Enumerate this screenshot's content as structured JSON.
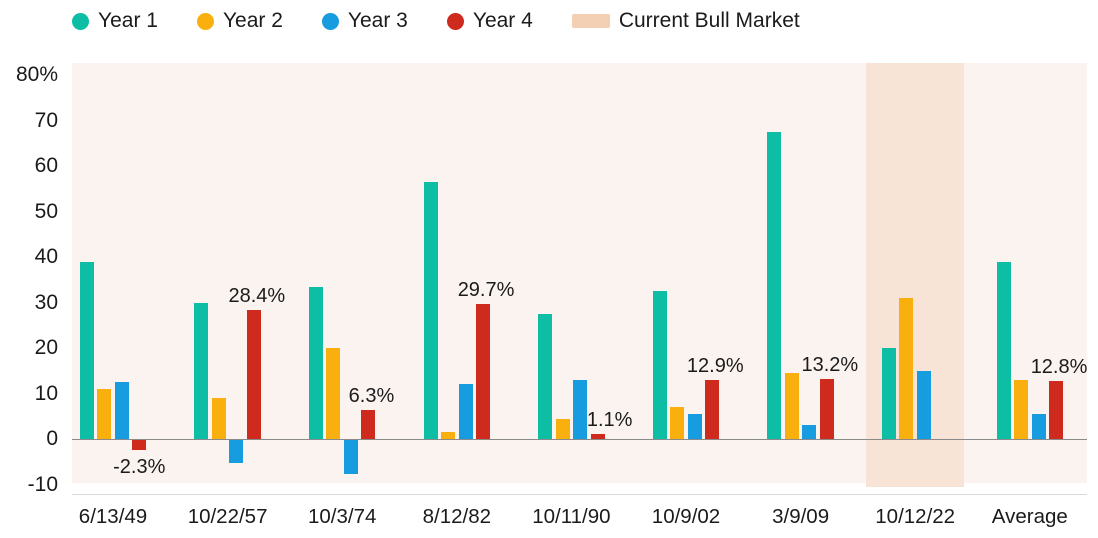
{
  "legend": {
    "items": [
      {
        "label": "Year 1",
        "color": "#0DBDA4",
        "marker": "dot"
      },
      {
        "label": "Year 2",
        "color": "#F9AF0E",
        "marker": "dot"
      },
      {
        "label": "Year 3",
        "color": "#179CDF",
        "marker": "dot"
      },
      {
        "label": "Year 4",
        "color": "#CE2A1D",
        "marker": "dot"
      },
      {
        "label": "Current Bull Market",
        "color": "#F3CFB3",
        "marker": "band"
      }
    ]
  },
  "chart_data": {
    "type": "bar",
    "title": "",
    "categories": [
      "6/13/49",
      "10/22/57",
      "10/3/74",
      "8/12/82",
      "10/11/90",
      "10/9/02",
      "3/9/09",
      "10/12/22",
      "Average"
    ],
    "series": [
      {
        "name": "Year 1",
        "color": "#0DBDA4",
        "values": [
          39,
          30,
          33.5,
          56.5,
          27.5,
          32.5,
          67.5,
          20,
          39
        ]
      },
      {
        "name": "Year 2",
        "color": "#F9AF0E",
        "values": [
          11,
          9,
          20,
          1.5,
          4.5,
          7,
          14.5,
          31,
          13
        ]
      },
      {
        "name": "Year 3",
        "color": "#179CDF",
        "values": [
          12.5,
          -5,
          -7.5,
          12,
          13,
          5.5,
          3,
          15,
          5.5
        ]
      },
      {
        "name": "Year 4",
        "color": "#CE2A1D",
        "values": [
          -2.3,
          28.4,
          6.3,
          29.7,
          1.1,
          12.9,
          13.2,
          null,
          12.8
        ],
        "data_labels": [
          "-2.3%",
          "28.4%",
          "6.3%",
          "29.7%",
          "1.1%",
          "12.9%",
          "13.2%",
          "",
          "12.8%"
        ]
      }
    ],
    "highlight_band": {
      "category": "10/12/22",
      "category_index": 7,
      "legend_label": "Current Bull Market",
      "color": "#F8E4D6"
    },
    "y_axis": {
      "tick_labels": [
        "80%",
        "70",
        "60",
        "50",
        "40",
        "30",
        "20",
        "10",
        "0",
        "-10"
      ],
      "tick_values": [
        80,
        70,
        60,
        50,
        40,
        30,
        20,
        10,
        0,
        -10
      ],
      "min": -10,
      "max": 80
    },
    "plot_background": "#FBF3F0",
    "zero_line_color": "#8A8A8A",
    "grid": "off",
    "legend_position": "top-left"
  }
}
